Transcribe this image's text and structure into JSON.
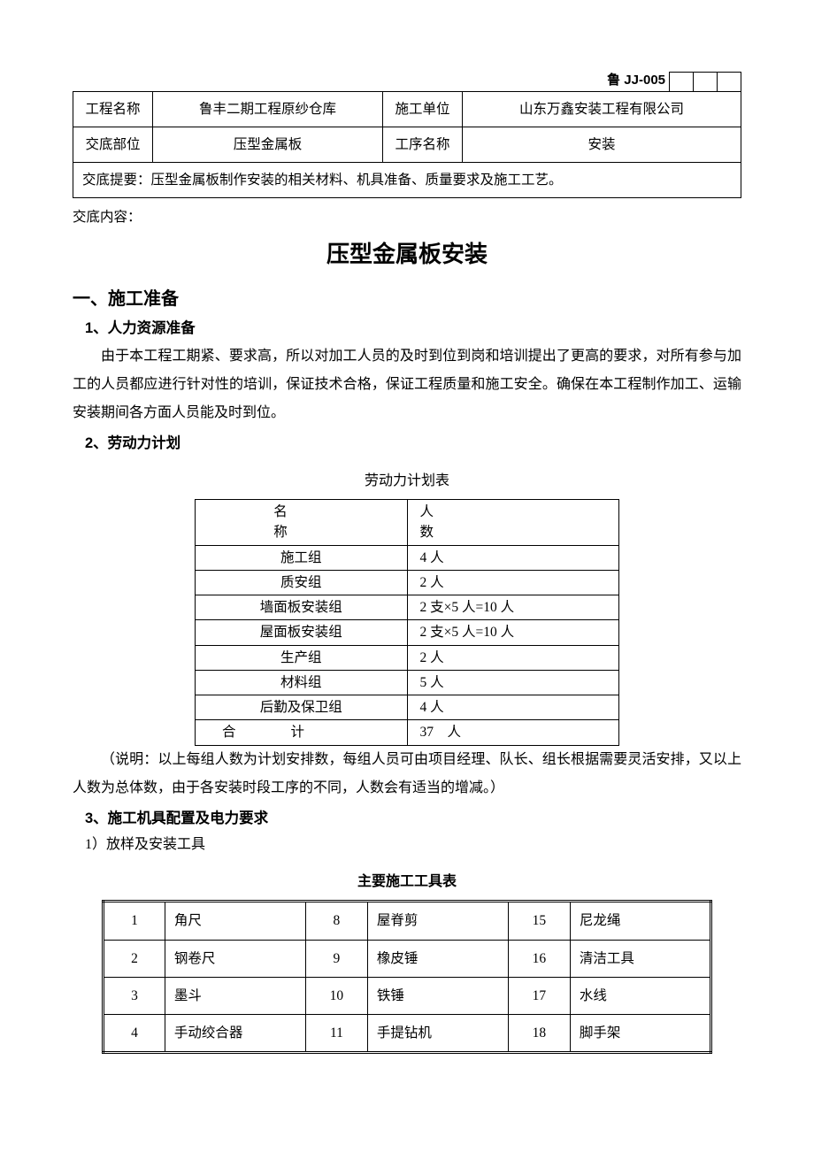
{
  "doc_code": "鲁 JJ-005",
  "header": {
    "row1": {
      "label1": "工程名称",
      "val1": "鲁丰二期工程原纱仓库",
      "label2": "施工单位",
      "val2": "山东万鑫安装工程有限公司"
    },
    "row2": {
      "label1": "交底部位",
      "val1": "压型金属板",
      "label2": "工序名称",
      "val2": "安装"
    },
    "summary": "交底提要：压型金属板制作安装的相关材料、机具准备、质量要求及施工工艺。"
  },
  "contentLabel": "交底内容：",
  "mainTitle": "压型金属板安装",
  "s1": {
    "heading": "一、施工准备",
    "sub1": {
      "heading": "1、人力资源准备",
      "p": "由于本工程工期紧、要求高，所以对加工人员的及时到位到岗和培训提出了更高的要求，对所有参与加工的人员都应进行针对性的培训，保证技术合格，保证工程质量和施工安全。确保在本工程制作加工、运输安装期间各方面人员能及时到位。"
    },
    "sub2": {
      "heading": "2、劳动力计划",
      "caption": "劳动力计划表",
      "headerName": "名　　称",
      "headerCount": "人　　数",
      "rows": [
        {
          "name": "施工组",
          "count": "4 人"
        },
        {
          "name": "质安组",
          "count": "2 人"
        },
        {
          "name": "墙面板安装组",
          "count": "2 支×5 人=10 人"
        },
        {
          "name": "屋面板安装组",
          "count": "2 支×5 人=10 人"
        },
        {
          "name": "生产组",
          "count": "2 人"
        },
        {
          "name": "材料组",
          "count": "5 人"
        },
        {
          "name": "后勤及保卫组",
          "count": "4 人"
        }
      ],
      "totalLabel": "合　　　　计",
      "totalCount": "37　人",
      "note": "（说明：以上每组人数为计划安排数，每组人员可由项目经理、队长、组长根据需要灵活安排，又以上人数为总体数，由于各安装时段工序的不同，人数会有适当的增减。）"
    },
    "sub3": {
      "heading": "3、施工机具配置及电力要求",
      "sub3a": "1）放样及安装工具",
      "caption": "主要施工工具表",
      "rows": [
        {
          "n1": "1",
          "t1": "角尺",
          "n2": "8",
          "t2": "屋脊剪",
          "n3": "15",
          "t3": "尼龙绳"
        },
        {
          "n1": "2",
          "t1": "钢卷尺",
          "n2": "9",
          "t2": "橡皮锤",
          "n3": "16",
          "t3": "清洁工具"
        },
        {
          "n1": "3",
          "t1": "墨斗",
          "n2": "10",
          "t2": "铁锤",
          "n3": "17",
          "t3": "水线"
        },
        {
          "n1": "4",
          "t1": "手动绞合器",
          "n2": "11",
          "t2": "手提钻机",
          "n3": "18",
          "t3": "脚手架"
        }
      ]
    }
  }
}
